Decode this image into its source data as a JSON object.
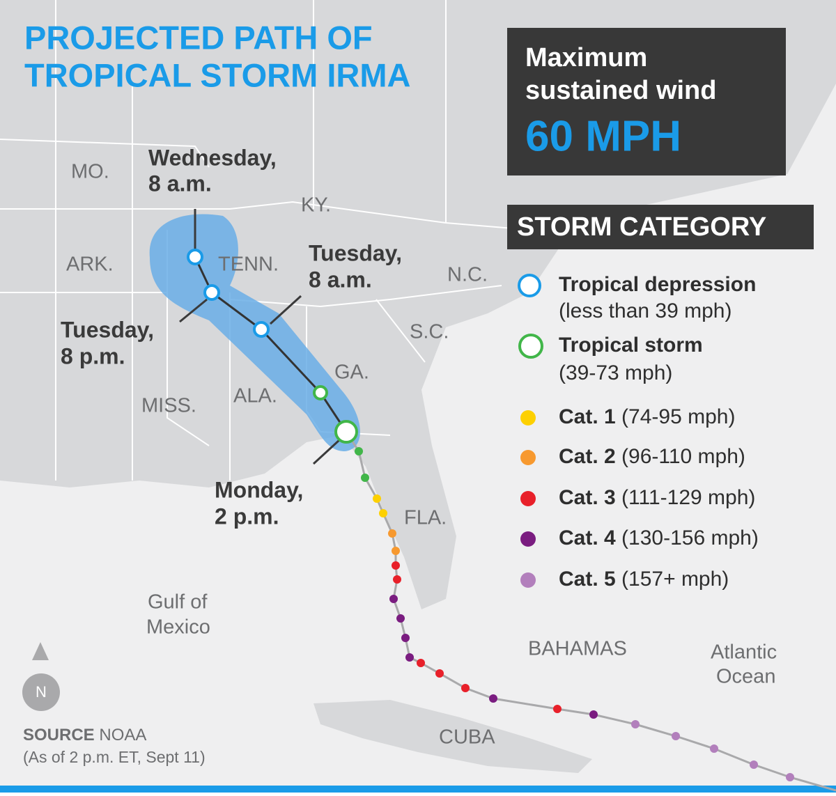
{
  "title": {
    "line1": "PROJECTED PATH OF",
    "line2": "TROPICAL STORM IRMA"
  },
  "wind": {
    "label1": "Maximum",
    "label2": "sustained wind",
    "value": "60 MPH"
  },
  "legend": {
    "header": "STORM CATEGORY",
    "items": [
      {
        "name": "Tropical depression",
        "range": "(less than 39 mph)"
      },
      {
        "name": "Tropical storm",
        "range": "(39-73 mph)"
      },
      {
        "name": "Cat. 1",
        "range": "(74-95 mph)"
      },
      {
        "name": "Cat. 2",
        "range": "(96-110 mph)"
      },
      {
        "name": "Cat. 3",
        "range": "(111-129 mph)"
      },
      {
        "name": "Cat. 4",
        "range": "(130-156 mph)"
      },
      {
        "name": "Cat. 5",
        "range": "(157+ mph)"
      }
    ]
  },
  "places": {
    "mo": "MO.",
    "ky": "KY.",
    "ark": "ARK.",
    "tenn": "TENN.",
    "nc": "N.C.",
    "sc": "S.C.",
    "ga": "GA.",
    "ala": "ALA.",
    "miss": "MISS.",
    "fla": "FLA.",
    "gulf1": "Gulf of",
    "gulf2": "Mexico",
    "bahamas": "BAHAMAS",
    "atlantic1": "Atlantic",
    "atlantic2": "Ocean",
    "cuba": "CUBA"
  },
  "times": [
    {
      "day": "Wednesday,",
      "hour": "8 a.m."
    },
    {
      "day": "Tuesday,",
      "hour": "8 a.m."
    },
    {
      "day": "Tuesday,",
      "hour": "8 p.m."
    },
    {
      "day": "Monday,",
      "hour": "2 p.m."
    }
  ],
  "compass": "N",
  "source": {
    "label": "SOURCE",
    "name": "NOAA",
    "note": "(As of 2 p.m. ET, Sept 11)"
  }
}
